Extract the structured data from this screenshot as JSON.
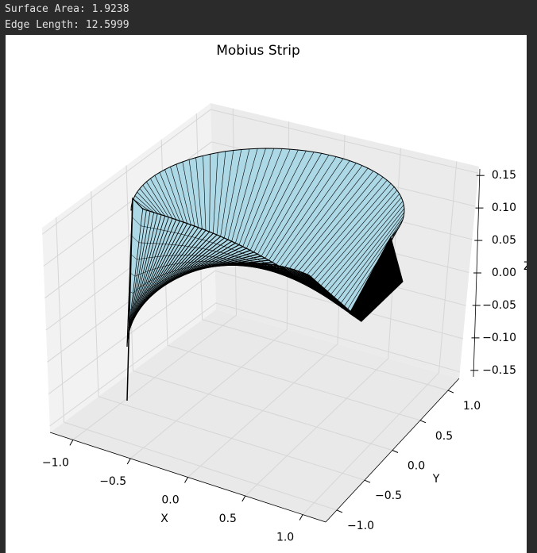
{
  "output": [
    "Surface Area: 1.9238",
    "Edge Length: 12.5999"
  ],
  "chart_data": {
    "type": "surface3d",
    "title": "Mobius Strip",
    "xlabel": "X",
    "ylabel": "Y",
    "zlabel": "Z",
    "color": "#add8e6",
    "edgecolor": "#000000",
    "xlim": [
      -1.2,
      1.2
    ],
    "ylim": [
      -1.2,
      1.2
    ],
    "zlim": [
      -0.16,
      0.16
    ],
    "xticks": [
      {
        "value": -1,
        "label": "−1.0"
      },
      {
        "value": -0.5,
        "label": "−0.5"
      },
      {
        "value": 0,
        "label": "0.0"
      },
      {
        "value": 0.5,
        "label": "0.5"
      },
      {
        "value": 1,
        "label": "1.0"
      }
    ],
    "yticks": [
      {
        "value": -1,
        "label": "−1.0"
      },
      {
        "value": -0.5,
        "label": "−0.5"
      },
      {
        "value": 0,
        "label": "0.0"
      },
      {
        "value": 0.5,
        "label": "0.5"
      },
      {
        "value": 1,
        "label": "1.0"
      }
    ],
    "zticks": [
      {
        "value": -0.15,
        "label": "−0.15"
      },
      {
        "value": -0.1,
        "label": "−0.10"
      },
      {
        "value": -0.05,
        "label": "−0.05"
      },
      {
        "value": 0,
        "label": "0.00"
      },
      {
        "value": 0.05,
        "label": "0.05"
      },
      {
        "value": 0.1,
        "label": "0.10"
      },
      {
        "value": 0.15,
        "label": "0.15"
      }
    ],
    "grid": true
  }
}
